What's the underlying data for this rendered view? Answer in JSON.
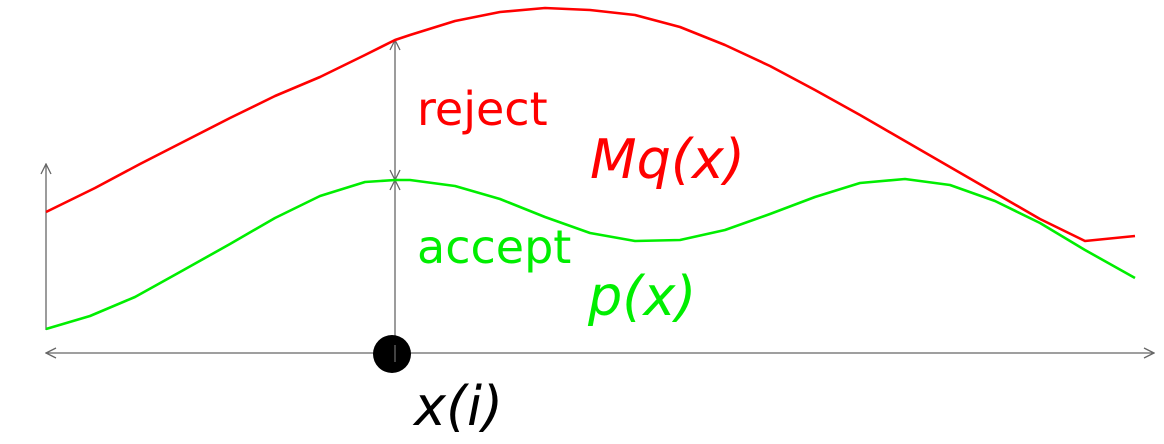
{
  "labels": {
    "reject": "reject",
    "accept": "accept",
    "mq": "Mq(x)",
    "p": "p(x)",
    "sample": "x(i)"
  },
  "colors": {
    "mq_curve": "#ff0000",
    "p_curve": "#00ee00",
    "axis": "#666666",
    "sample_point": "#000000"
  }
}
